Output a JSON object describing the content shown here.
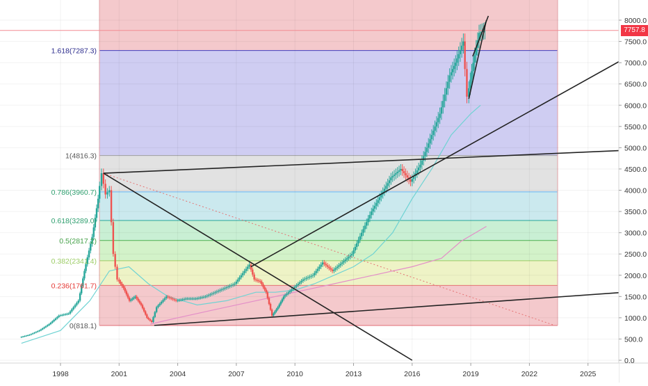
{
  "chart_data": {
    "type": "candlestick",
    "symbol_last_price": "7757.8",
    "x_axis": {
      "ticks": [
        "1998",
        "2001",
        "2004",
        "2007",
        "2010",
        "2013",
        "2016",
        "2019",
        "2022",
        "2025"
      ]
    },
    "y_axis": {
      "range": [
        0,
        8000
      ],
      "ticks": [
        "0.0",
        "500.0",
        "1000.0",
        "1500.0",
        "2000.0",
        "2500.0",
        "3000.0",
        "3500.0",
        "4000.0",
        "4500.0",
        "5000.0",
        "5500.0",
        "6000.0",
        "6500.0",
        "7000.0",
        "7500.0",
        "8000.0"
      ]
    },
    "fibonacci": [
      {
        "label": "0(818.1)",
        "value": 818.1,
        "fill": "#f4c9cc",
        "line": "#e06c75",
        "label_color": "#555555"
      },
      {
        "label": "0.236(1761.7)",
        "value": 1761.7,
        "fill": "#eef3c6",
        "line": "#e57373",
        "label_color": "#e53935"
      },
      {
        "label": "0.382(2341.4)",
        "value": 2341.4,
        "fill": "#d3f2c9",
        "line": "#9ccc65",
        "label_color": "#9ccc65"
      },
      {
        "label": "0.5(2817.2)",
        "value": 2817.2,
        "fill": "#c9efd4",
        "line": "#4caf50",
        "label_color": "#43a047"
      },
      {
        "label": "0.618(3289.0)",
        "value": 3289.0,
        "fill": "#cbe9ee",
        "line": "#26a69a",
        "label_color": "#2e9e6e"
      },
      {
        "label": "0.786(3960.7)",
        "value": 3960.7,
        "fill": "#e2e2e2",
        "line": "#64b5f6",
        "label_color": "#2e9e6e"
      },
      {
        "label": "1(4816.3)",
        "value": 4816.3,
        "fill": "#cfcdf2",
        "line": "#9e9e9e",
        "label_color": "#555555"
      },
      {
        "label": "1.618(7287.3)",
        "value": 7287.3,
        "fill": "#f4c9cc",
        "line": "#3f3fbf",
        "label_color": "#2b2b8c"
      }
    ],
    "series": [
      {
        "kind": "candles",
        "up_color": "#26a69a",
        "down_color": "#ef5350",
        "close": [
          [
            1996,
            540
          ],
          [
            1996.5,
            600
          ],
          [
            1997,
            700
          ],
          [
            1997.5,
            850
          ],
          [
            1998,
            1050
          ],
          [
            1998.5,
            1100
          ],
          [
            1999,
            1400
          ],
          [
            1999.3,
            2100
          ],
          [
            1999.7,
            2900
          ],
          [
            2000,
            3800
          ],
          [
            2000.2,
            4400
          ],
          [
            2000.4,
            3900
          ],
          [
            2000.6,
            4000
          ],
          [
            2000.8,
            2500
          ],
          [
            2001,
            1900
          ],
          [
            2001.3,
            1700
          ],
          [
            2001.6,
            1400
          ],
          [
            2001.9,
            1500
          ],
          [
            2002.2,
            1300
          ],
          [
            2002.5,
            1000
          ],
          [
            2002.75,
            900
          ],
          [
            2003,
            1250
          ],
          [
            2003.5,
            1500
          ],
          [
            2004,
            1400
          ],
          [
            2004.5,
            1450
          ],
          [
            2005,
            1450
          ],
          [
            2005.5,
            1500
          ],
          [
            2006,
            1600
          ],
          [
            2006.5,
            1700
          ],
          [
            2007,
            1800
          ],
          [
            2007.5,
            2100
          ],
          [
            2007.75,
            2250
          ],
          [
            2008,
            1900
          ],
          [
            2008.3,
            1850
          ],
          [
            2008.6,
            1600
          ],
          [
            2008.9,
            1050
          ],
          [
            2009.2,
            1250
          ],
          [
            2009.5,
            1500
          ],
          [
            2010,
            1700
          ],
          [
            2010.5,
            1900
          ],
          [
            2011,
            2000
          ],
          [
            2011.5,
            2300
          ],
          [
            2012,
            2100
          ],
          [
            2012.5,
            2300
          ],
          [
            2013,
            2500
          ],
          [
            2013.5,
            3000
          ],
          [
            2014,
            3500
          ],
          [
            2014.5,
            3900
          ],
          [
            2015,
            4300
          ],
          [
            2015.5,
            4500
          ],
          [
            2016,
            4200
          ],
          [
            2016.5,
            4600
          ],
          [
            2017,
            5200
          ],
          [
            2017.5,
            5800
          ],
          [
            2018,
            6700
          ],
          [
            2018.3,
            7000
          ],
          [
            2018.7,
            7500
          ],
          [
            2018.9,
            6200
          ],
          [
            2019.2,
            7000
          ],
          [
            2019.5,
            7700
          ],
          [
            2019.8,
            7757.8
          ]
        ]
      },
      {
        "kind": "moving-average",
        "color": "#6fd3d3",
        "values": [
          [
            1996,
            400
          ],
          [
            1998,
            700
          ],
          [
            1999.5,
            1400
          ],
          [
            2000.5,
            2100
          ],
          [
            2001.5,
            2200
          ],
          [
            2002.5,
            1800
          ],
          [
            2003.5,
            1500
          ],
          [
            2005,
            1300
          ],
          [
            2006.5,
            1400
          ],
          [
            2008,
            1600
          ],
          [
            2009,
            1600
          ],
          [
            2010,
            1650
          ],
          [
            2011,
            1800
          ],
          [
            2012,
            2000
          ],
          [
            2013,
            2200
          ],
          [
            2014,
            2500
          ],
          [
            2015,
            3000
          ],
          [
            2016,
            3800
          ],
          [
            2017,
            4500
          ],
          [
            2018,
            5300
          ],
          [
            2019,
            5800
          ],
          [
            2019.5,
            6000
          ]
        ]
      },
      {
        "kind": "moving-average",
        "color": "#e38ec8",
        "values": [
          [
            2002.6,
            850
          ],
          [
            2004,
            1000
          ],
          [
            2006,
            1200
          ],
          [
            2008,
            1400
          ],
          [
            2010,
            1600
          ],
          [
            2012,
            1800
          ],
          [
            2014,
            2000
          ],
          [
            2016,
            2200
          ],
          [
            2017.5,
            2400
          ],
          [
            2018.5,
            2800
          ],
          [
            2019.8,
            3150
          ]
        ]
      }
    ],
    "trendlines": [
      {
        "from": [
          2000.2,
          4400
        ],
        "to": [
          2023.3,
          820
        ],
        "style": "dotted",
        "color": "#e57373"
      },
      {
        "from": [
          2000.2,
          4400
        ],
        "to": [
          2016,
          0
        ],
        "style": "solid",
        "color": "#222222"
      },
      {
        "from": [
          2000.2,
          4400
        ],
        "to": [
          2030,
          5000
        ],
        "style": "solid",
        "color": "#222222"
      },
      {
        "from": [
          2002.8,
          820
        ],
        "to": [
          2030,
          1700
        ],
        "style": "solid",
        "color": "#222222"
      },
      {
        "from": [
          2007.75,
          2200
        ],
        "to": [
          2030,
          7900
        ],
        "style": "solid",
        "color": "#222222"
      },
      {
        "from": [
          2018.9,
          6150
        ],
        "to": [
          2019.8,
          8000
        ],
        "style": "solid",
        "color": "#222222"
      },
      {
        "from": [
          2019.1,
          7150
        ],
        "to": [
          2019.9,
          8100
        ],
        "style": "solid",
        "color": "#222222"
      }
    ],
    "last_price_line": 7757.8
  }
}
